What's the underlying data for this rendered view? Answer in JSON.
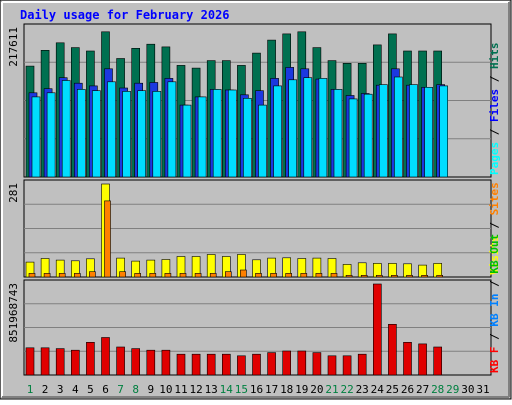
{
  "chart_data": {
    "type": "bar",
    "title": "Daily usage for February 2026",
    "days": [
      "1",
      "2",
      "3",
      "4",
      "5",
      "6",
      "7",
      "8",
      "9",
      "10",
      "11",
      "12",
      "13",
      "14",
      "15",
      "16",
      "17",
      "18",
      "19",
      "20",
      "21",
      "22",
      "23",
      "24",
      "25",
      "26",
      "27",
      "28",
      "29",
      "30",
      "31"
    ],
    "weekend_days": [
      1,
      7,
      8,
      14,
      15,
      21,
      22,
      28,
      29
    ],
    "panels": [
      {
        "name": "requests",
        "scale_label": "217611",
        "ylim": [
          0,
          217611
        ],
        "right_label": [
          {
            "text": "Pages",
            "color": "#00ffff"
          },
          {
            "text": " / ",
            "color": "#000000"
          },
          {
            "text": "Files",
            "color": "#0000ff"
          },
          {
            "text": " / ",
            "color": "#000000"
          },
          {
            "text": "Hits",
            "color": "#007050"
          }
        ],
        "series": [
          {
            "name": "Hits",
            "color": "#007050",
            "values": [
              162000,
              185000,
              196000,
              189000,
              184000,
              212000,
              173000,
              188000,
              194000,
              190000,
              163000,
              159000,
              170000,
              170000,
              163000,
              181000,
              200000,
              209000,
              212000,
              189000,
              170000,
              166000,
              166000,
              193000,
              209000,
              184000,
              184000,
              184000,
              0,
              0,
              0
            ]
          },
          {
            "name": "Files",
            "color": "#1c38e0",
            "values": [
              123000,
              129000,
              145000,
              137000,
              133000,
              158000,
              130000,
              137000,
              138000,
              144000,
              105000,
              117000,
              128000,
              127000,
              120000,
              126000,
              144000,
              160000,
              158000,
              143000,
              128000,
              119000,
              122000,
              134000,
              158000,
              134000,
              131000,
              135000,
              0,
              0,
              0
            ]
          },
          {
            "name": "Pages",
            "color": "#00ddff",
            "values": [
              117000,
              123000,
              141000,
              128000,
              126000,
              139000,
              125000,
              126000,
              125000,
              139000,
              105000,
              117000,
              128000,
              127000,
              115000,
              105000,
              133000,
              142000,
              145000,
              144000,
              128000,
              114000,
              121000,
              135000,
              146000,
              135000,
              131000,
              133000,
              0,
              0,
              0
            ]
          }
        ]
      },
      {
        "name": "visits",
        "scale_label": "281",
        "ylim": [
          0,
          281
        ],
        "right_label": [
          {
            "text": "Visits",
            "color": "#ffff00"
          },
          {
            "text": " / ",
            "color": "#000000"
          },
          {
            "text": "Sites",
            "color": "#ff8000"
          }
        ],
        "series": [
          {
            "name": "Visits",
            "color": "#ffff00",
            "values": [
              45,
              56,
              51,
              49,
              55,
              281,
              57,
              48,
              51,
              53,
              62,
              62,
              68,
              62,
              68,
              52,
              57,
              58,
              56,
              57,
              56,
              38,
              43,
              41,
              41,
              40,
              36,
              41,
              0,
              0,
              0
            ]
          },
          {
            "name": "Sites",
            "color": "#ff8000",
            "values": [
              11,
              11,
              11,
              11,
              16,
              230,
              16,
              11,
              11,
              11,
              11,
              11,
              11,
              16,
              21,
              11,
              11,
              11,
              11,
              11,
              11,
              5,
              5,
              5,
              5,
              5,
              5,
              5,
              0,
              0,
              0
            ]
          }
        ]
      },
      {
        "name": "volume",
        "scale_label": "851968743",
        "ylim": [
          0,
          851968743
        ],
        "right_label": [
          {
            "text": "KB F",
            "color": "#ff0000"
          },
          {
            "text": " / ",
            "color": "#000000"
          },
          {
            "text": "KB In",
            "color": "#0080ff"
          },
          {
            "text": " / ",
            "color": "#000000"
          },
          {
            "text": "KB Out",
            "color": "#00c000"
          }
        ],
        "series": [
          {
            "name": "KB F",
            "color": "#e00000",
            "values": [
              255000000,
              255000000,
              247000000,
              232000000,
              306000000,
              351000000,
              262000000,
              247000000,
              232000000,
              232000000,
              195000000,
              195000000,
              195000000,
              195000000,
              180000000,
              195000000,
              210000000,
              225000000,
              225000000,
              210000000,
              180000000,
              180000000,
              195000000,
              851968743,
              475000000,
              306000000,
              291000000,
              262000000,
              0,
              0,
              0
            ]
          }
        ]
      }
    ]
  }
}
